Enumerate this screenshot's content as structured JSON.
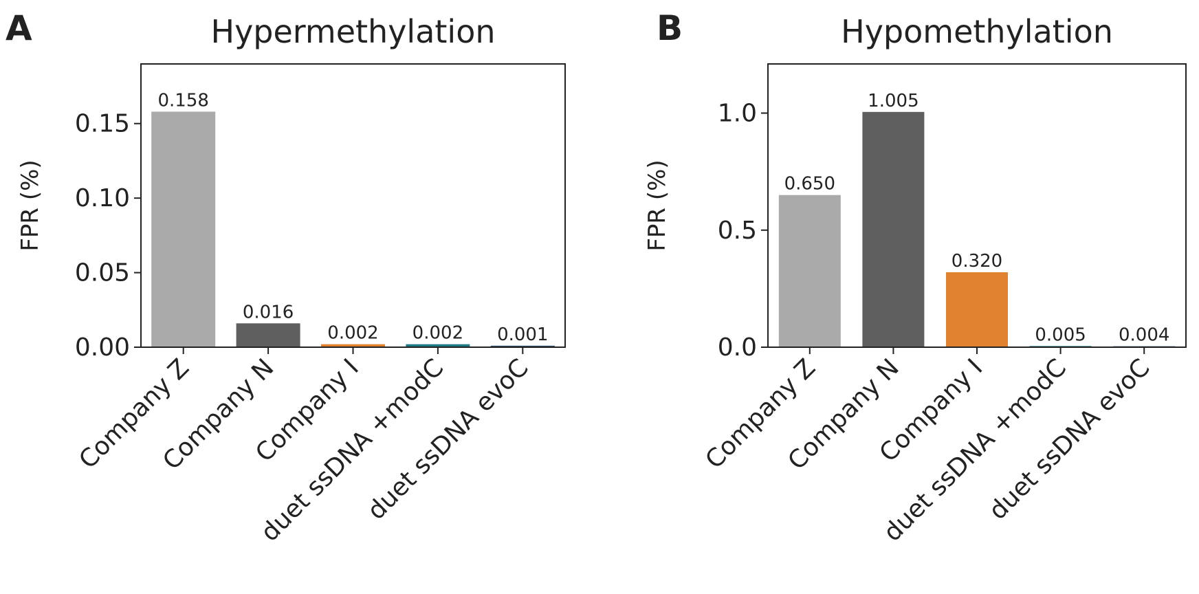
{
  "figure": {
    "panel_a_letter": "A",
    "panel_b_letter": "B"
  },
  "chart_data": [
    {
      "type": "bar",
      "title": "Hypermethylation",
      "xlabel": "",
      "ylabel": "FPR (%)",
      "categories": [
        "Company Z",
        "Company N",
        "Company I",
        "duet ssDNA +modC",
        "duet ssDNA evoC"
      ],
      "values": [
        0.158,
        0.016,
        0.002,
        0.002,
        0.001
      ],
      "value_labels": [
        "0.158",
        "0.016",
        "0.002",
        "0.002",
        "0.001"
      ],
      "colors": [
        "#aaaaaa",
        "#5f5f5f",
        "#e0822f",
        "#1e7a85",
        "#2f4f6f"
      ],
      "ylim": [
        0,
        0.19
      ],
      "yticks": [
        0,
        0.05,
        0.1,
        0.15
      ],
      "ytick_labels": [
        "0.00",
        "0.05",
        "0.10",
        "0.15"
      ],
      "grid": false,
      "legend": "none"
    },
    {
      "type": "bar",
      "title": "Hypomethylation",
      "xlabel": "",
      "ylabel": "FPR (%)",
      "categories": [
        "Company Z",
        "Company N",
        "Company I",
        "duet ssDNA +modC",
        "duet ssDNA evoC"
      ],
      "values": [
        0.65,
        1.005,
        0.32,
        0.005,
        0.004
      ],
      "value_labels": [
        "0.650",
        "1.005",
        "0.320",
        "0.005",
        "0.004"
      ],
      "colors": [
        "#aaaaaa",
        "#5f5f5f",
        "#e0822f",
        "#1e7a85",
        "#2f4f6f"
      ],
      "ylim": [
        0,
        1.21
      ],
      "yticks": [
        0,
        0.5,
        1.0
      ],
      "ytick_labels": [
        "0.0",
        "0.5",
        "1.0"
      ],
      "grid": false,
      "legend": "none"
    }
  ]
}
